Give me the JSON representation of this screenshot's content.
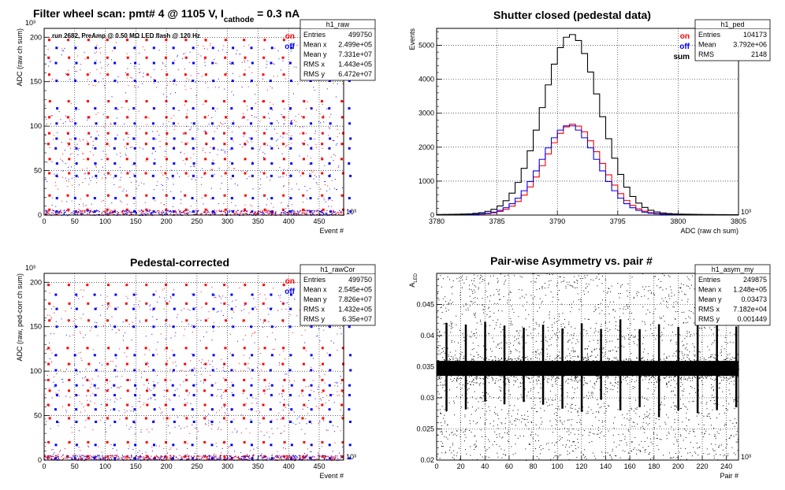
{
  "colors": {
    "on": "#ff0000",
    "off": "#0000ff",
    "sum": "#000000",
    "grid": "#000000"
  },
  "chart_data": [
    {
      "id": "raw",
      "type": "scatter",
      "title_parts": [
        "Filter wheel scan: pmt#   4 @  1105 V, I",
        "cathode",
        " = 0.3 nA"
      ],
      "ylabel": "ADC (raw ch sum)",
      "xlabel": "Event #",
      "y_exponent": "10³",
      "x_exponent": "10³",
      "xlim": [
        0,
        490
      ],
      "ylim": [
        0,
        210
      ],
      "x_ticks": [
        0,
        50,
        100,
        150,
        200,
        250,
        300,
        350,
        400,
        450
      ],
      "y_ticks": [
        0,
        50,
        100,
        150,
        200
      ],
      "note": "run 2682, PreAmp @ 0.50 MΩ  LED flash @  120 Hz",
      "legend": [
        "on",
        "off"
      ],
      "levels": [
        {
          "on": 197,
          "off": 188
        },
        {
          "on": 177,
          "off": 171
        },
        {
          "on": 158,
          "off": 151
        },
        {
          "on": 128,
          "off": 120
        },
        {
          "on": 110,
          "off": 103
        },
        {
          "on": 92,
          "off": 86
        },
        {
          "on": 80,
          "off": 75
        },
        {
          "on": 63,
          "off": 58
        },
        {
          "on": 47,
          "off": 44
        },
        {
          "on": 22,
          "off": 19
        },
        {
          "on": 6,
          "off": 4
        }
      ],
      "period": 32,
      "stats": {
        "name": "h1_raw",
        "rows": [
          [
            "Entries",
            "499750"
          ],
          [
            "Mean x",
            "2.499e+05"
          ],
          [
            "Mean y",
            "7.331e+07"
          ],
          [
            "RMS x",
            "1.443e+05"
          ],
          [
            "RMS y",
            "6.472e+07"
          ]
        ]
      }
    },
    {
      "id": "ped",
      "type": "line",
      "title_parts": [
        "Shutter closed (pedestal data)"
      ],
      "ylabel": "Events",
      "xlabel": "ADC (raw ch sum)",
      "x_exponent": "10³",
      "xlim": [
        3780,
        3805
      ],
      "ylim": [
        0,
        5500
      ],
      "x_ticks": [
        3780,
        3785,
        3790,
        3795,
        3800,
        3805
      ],
      "y_ticks": [
        0,
        1000,
        2000,
        3000,
        4000,
        5000
      ],
      "legend": [
        "on",
        "off",
        "sum"
      ],
      "series": [
        {
          "name": "on",
          "mean": 3791.3,
          "sigma": 2.3,
          "peak": 2600
        },
        {
          "name": "off",
          "mean": 3791.0,
          "sigma": 2.3,
          "peak": 2570
        },
        {
          "name": "sum",
          "mean": 3791.15,
          "sigma": 2.35,
          "peak": 5170
        }
      ],
      "stats": {
        "name": "h1_ped",
        "rows": [
          [
            "Entries",
            "104173"
          ],
          [
            "Mean",
            "3.792e+06"
          ],
          [
            "RMS",
            "2148"
          ]
        ]
      }
    },
    {
      "id": "rawcor",
      "type": "scatter",
      "title_parts": [
        "Pedestal-corrected"
      ],
      "ylabel": "ADC (raw, ped-corr ch sum)",
      "xlabel": "Event #",
      "y_exponent": "10³",
      "x_exponent": "10³",
      "xlim": [
        0,
        490
      ],
      "ylim": [
        0,
        210
      ],
      "x_ticks": [
        0,
        50,
        100,
        150,
        200,
        250,
        300,
        350,
        400,
        450
      ],
      "y_ticks": [
        0,
        50,
        100,
        150,
        200
      ],
      "legend": [
        "on",
        "off"
      ],
      "levels": [
        {
          "on": 197,
          "off": 186
        },
        {
          "on": 176,
          "off": 170
        },
        {
          "on": 157,
          "off": 150
        },
        {
          "on": 126,
          "off": 118
        },
        {
          "on": 108,
          "off": 101
        },
        {
          "on": 90,
          "off": 84
        },
        {
          "on": 78,
          "off": 73
        },
        {
          "on": 62,
          "off": 57
        },
        {
          "on": 47,
          "off": 43
        },
        {
          "on": 20,
          "off": 17
        },
        {
          "on": 4,
          "off": 2
        }
      ],
      "period": 32,
      "stats": {
        "name": "h1_rawCor",
        "rows": [
          [
            "Entries",
            "499750"
          ],
          [
            "Mean x",
            "2.545e+05"
          ],
          [
            "Mean y",
            "7.826e+07"
          ],
          [
            "RMS x",
            "1.432e+05"
          ],
          [
            "RMS y",
            "6.35e+07"
          ]
        ]
      }
    },
    {
      "id": "asym",
      "type": "scatter",
      "title_parts": [
        "Pair-wise Asymmetry vs. pair #"
      ],
      "ylabel": "A",
      "ylabel_sub": "LED",
      "xlabel": "Pair #",
      "x_exponent": "10³",
      "xlim": [
        0,
        250
      ],
      "ylim": [
        0.02,
        0.05
      ],
      "x_ticks": [
        0,
        20,
        40,
        60,
        80,
        100,
        120,
        140,
        160,
        180,
        200,
        220,
        240
      ],
      "y_ticks": [
        0.02,
        0.025,
        0.03,
        0.035,
        0.04,
        0.045
      ],
      "band_center": 0.03473,
      "band_halfwidth": 0.0012,
      "spike_period": 16,
      "stats": {
        "name": "h1_asym_my",
        "rows": [
          [
            "Entries",
            "249875"
          ],
          [
            "Mean x",
            "1.248e+05"
          ],
          [
            "Mean y",
            "0.03473"
          ],
          [
            "RMS x",
            "7.182e+04"
          ],
          [
            "RMS y",
            "0.001449"
          ]
        ]
      }
    }
  ]
}
